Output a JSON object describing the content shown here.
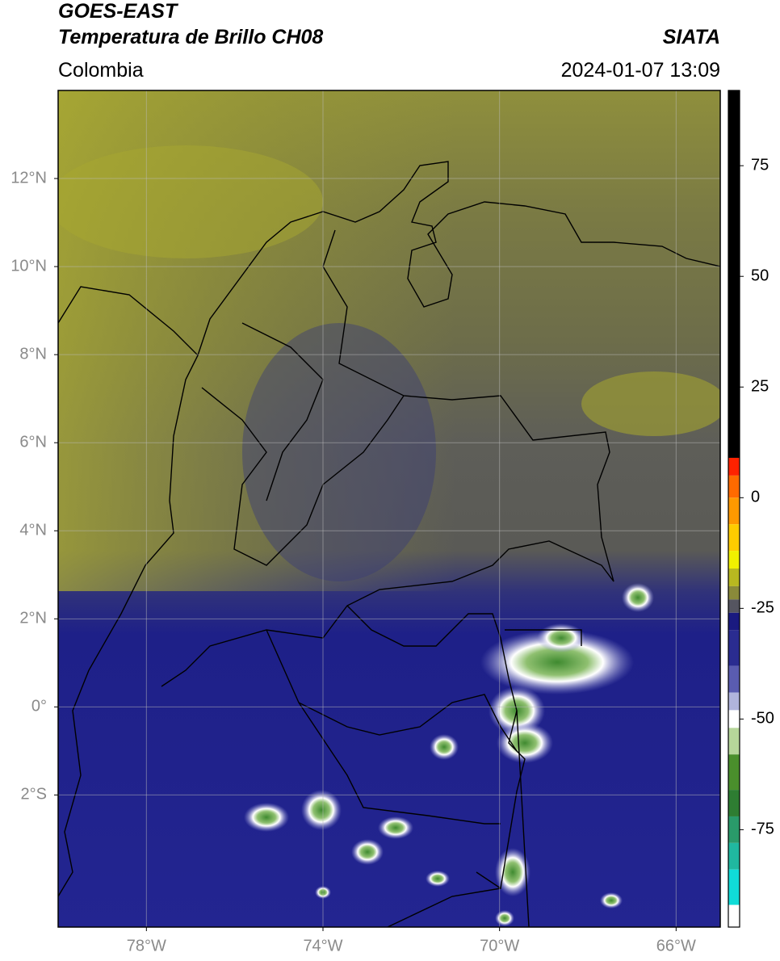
{
  "header": {
    "title": "GOES-EAST",
    "subtitle": "Temperatura de Brillo CH08",
    "source": "SIATA",
    "region": "Colombia",
    "datetime": "2024-01-07 13:09"
  },
  "map": {
    "xlim": [
      -80,
      -65
    ],
    "ylim": [
      -5,
      14
    ],
    "xticks": [
      {
        "value": -78,
        "label": "78°W"
      },
      {
        "value": -74,
        "label": "74°W"
      },
      {
        "value": -70,
        "label": "70°W"
      },
      {
        "value": -66,
        "label": "66°W"
      }
    ],
    "yticks": [
      {
        "value": -2,
        "label": "2°S"
      },
      {
        "value": 0,
        "label": "0°"
      },
      {
        "value": 2,
        "label": "2°N"
      },
      {
        "value": 4,
        "label": "4°N"
      },
      {
        "value": 6,
        "label": "6°N"
      },
      {
        "value": 8,
        "label": "8°N"
      },
      {
        "value": 10,
        "label": "10°N"
      },
      {
        "value": 12,
        "label": "12°N"
      }
    ],
    "grid": true
  },
  "colorbar": {
    "ylim": [
      -97,
      92
    ],
    "yticks": [
      -75,
      -50,
      -25,
      0,
      25,
      50,
      75
    ],
    "segments": [
      {
        "from": 9,
        "to": 92,
        "color": "#000000"
      },
      {
        "from": 5,
        "to": 9,
        "color": "#ff2200"
      },
      {
        "from": 0,
        "to": 5,
        "color": "#ff6a00"
      },
      {
        "from": -6,
        "to": 0,
        "color": "#ff9900"
      },
      {
        "from": -12,
        "to": -6,
        "color": "#ffcc00"
      },
      {
        "from": -16,
        "to": -12,
        "color": "#f0f000"
      },
      {
        "from": -20,
        "to": -16,
        "color": "#b8b820"
      },
      {
        "from": -23,
        "to": -20,
        "color": "#8a8a3a"
      },
      {
        "from": -26,
        "to": -23,
        "color": "#555560"
      },
      {
        "from": -30,
        "to": -26,
        "color": "#1a1a80"
      },
      {
        "from": -38,
        "to": -30,
        "color": "#2a2c90"
      },
      {
        "from": -44,
        "to": -38,
        "color": "#5a5cb0"
      },
      {
        "from": -48,
        "to": -44,
        "color": "#b0b4dc"
      },
      {
        "from": -52,
        "to": -48,
        "color": "#ffffff"
      },
      {
        "from": -58,
        "to": -52,
        "color": "#b6d69a"
      },
      {
        "from": -66,
        "to": -58,
        "color": "#4a8f2c"
      },
      {
        "from": -72,
        "to": -66,
        "color": "#2e7d32"
      },
      {
        "from": -78,
        "to": -72,
        "color": "#2a9a6a"
      },
      {
        "from": -84,
        "to": -78,
        "color": "#20b8a0"
      },
      {
        "from": -92,
        "to": -84,
        "color": "#10dcd8"
      },
      {
        "from": -97,
        "to": -92,
        "color": "#ffffff"
      }
    ]
  }
}
